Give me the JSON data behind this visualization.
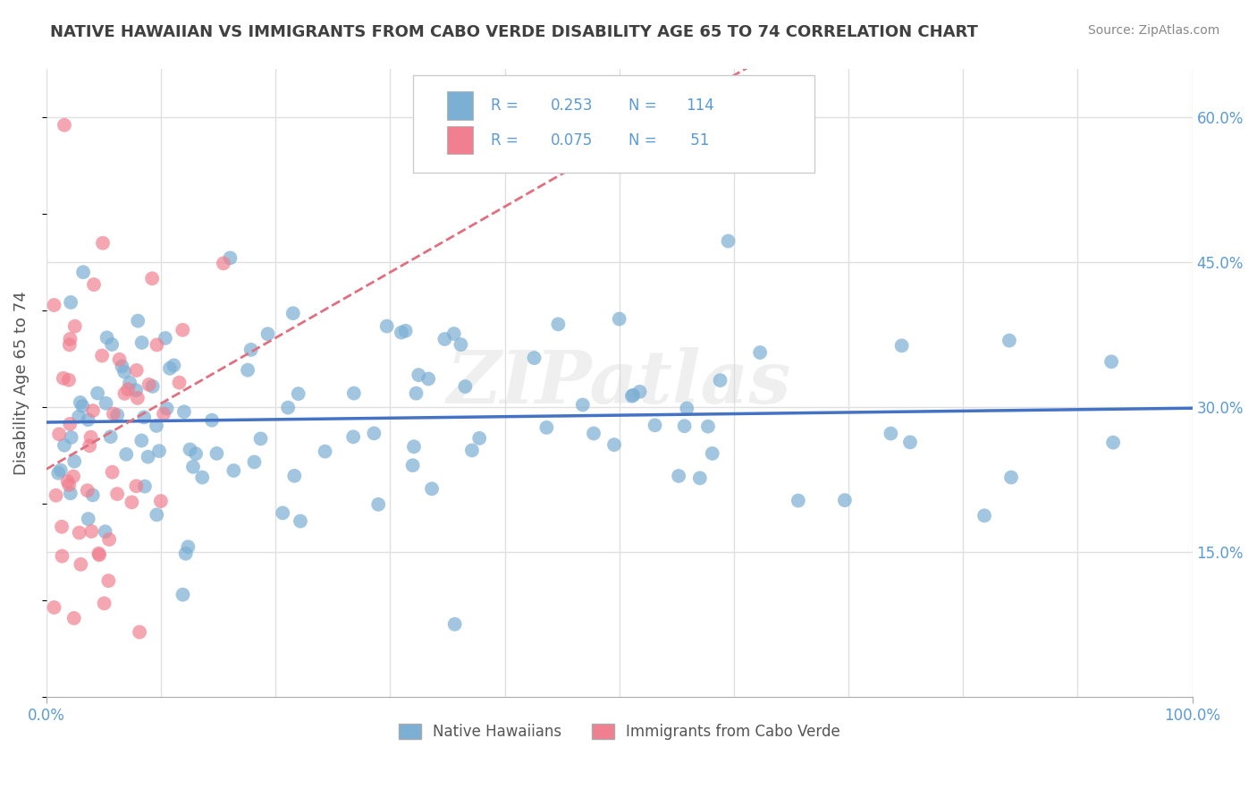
{
  "title": "NATIVE HAWAIIAN VS IMMIGRANTS FROM CABO VERDE DISABILITY AGE 65 TO 74 CORRELATION CHART",
  "source": "Source: ZipAtlas.com",
  "ylabel": "Disability Age 65 to 74",
  "xlim": [
    0.0,
    1.0
  ],
  "ylim": [
    0.0,
    0.65
  ],
  "ytick_positions": [
    0.15,
    0.3,
    0.45,
    0.6
  ],
  "ytick_labels": [
    "15.0%",
    "30.0%",
    "45.0%",
    "60.0%"
  ],
  "series1_label": "Native Hawaiians",
  "series2_label": "Immigrants from Cabo Verde",
  "series1_color": "#7bafd4",
  "series2_color": "#f08090",
  "series1_R": 0.253,
  "series1_N": 114,
  "series2_R": 0.075,
  "series2_N": 51,
  "trend1_color": "#4472c4",
  "trend2_color": "#e07080",
  "background_color": "#ffffff",
  "grid_color": "#e0e0e0",
  "watermark": "ZIPatlas",
  "legend_blue_color": "#5b9bd5",
  "legend_box_color": "#cccccc"
}
